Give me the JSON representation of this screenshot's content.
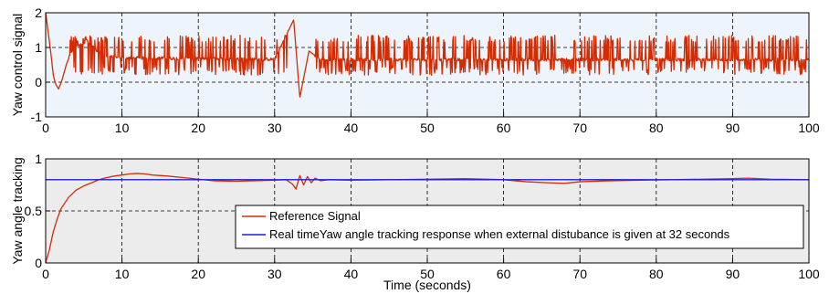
{
  "chart_data": [
    {
      "type": "line",
      "title": "",
      "xlabel": "",
      "ylabel": "Yaw control signal",
      "xlim": [
        0,
        100
      ],
      "ylim": [
        -1,
        2
      ],
      "xticks": [
        0,
        10,
        20,
        30,
        40,
        50,
        60,
        70,
        80,
        90,
        100
      ],
      "xtick_labels": [
        "0",
        "10",
        "20",
        "30",
        "40",
        "50",
        "60",
        "70",
        "80",
        "90",
        "100"
      ],
      "yticks": [
        -1,
        0,
        1,
        2
      ],
      "ytick_labels": [
        "-1",
        "0",
        "1",
        "2"
      ],
      "grid": true,
      "grid_style": "dashed",
      "background": "#eef4fb",
      "series": [
        {
          "color": "#d62b00",
          "description": "switching control signal around a 0.65 baseline",
          "points": [
            [
              0,
              2.0
            ],
            [
              0.3,
              1.5
            ],
            [
              0.7,
              0.8
            ],
            [
              1.0,
              0.2
            ],
            [
              1.3,
              -0.05
            ],
            [
              1.7,
              -0.2
            ],
            [
              2.2,
              0.1
            ],
            [
              2.7,
              0.5
            ],
            [
              3.3,
              0.85
            ],
            [
              4.0,
              1.05
            ],
            [
              5.0,
              1.15
            ],
            [
              6.0,
              1.05
            ],
            [
              7.0,
              0.85
            ],
            [
              8.0,
              0.75
            ],
            [
              10,
              0.7
            ],
            [
              20,
              0.68
            ],
            [
              30,
              0.66
            ],
            [
              32.5,
              1.8
            ],
            [
              33.3,
              -0.45
            ],
            [
              34.5,
              0.9
            ],
            [
              36,
              0.65
            ],
            [
              100,
              0.65
            ]
          ],
          "switching_band": [
            0.2,
            1.35
          ]
        }
      ]
    },
    {
      "type": "line",
      "title": "",
      "xlabel": "Time (seconds)",
      "ylabel": "Yaw angle tracking",
      "xlim": [
        0,
        100
      ],
      "ylim": [
        0,
        1
      ],
      "xticks": [
        0,
        10,
        20,
        30,
        40,
        50,
        60,
        70,
        80,
        90,
        100
      ],
      "xtick_labels": [
        "0",
        "10",
        "20",
        "30",
        "40",
        "50",
        "60",
        "70",
        "80",
        "90",
        "100"
      ],
      "yticks": [
        0,
        0.5,
        1
      ],
      "ytick_labels": [
        "0",
        "0.5",
        "1"
      ],
      "grid": true,
      "grid_style": "dashed",
      "background": "#ececec",
      "legend_position": "lower-right",
      "series": [
        {
          "name": "Reference Signal",
          "color": "#d62b00",
          "points": [
            [
              0,
              0
            ],
            [
              0.5,
              0.13
            ],
            [
              1,
              0.3
            ],
            [
              1.5,
              0.42
            ],
            [
              2,
              0.52
            ],
            [
              3,
              0.63
            ],
            [
              4,
              0.7
            ],
            [
              5,
              0.74
            ],
            [
              6,
              0.77
            ],
            [
              7,
              0.8
            ],
            [
              8,
              0.82
            ],
            [
              9,
              0.835
            ],
            [
              10,
              0.845
            ],
            [
              11,
              0.855
            ],
            [
              12,
              0.86
            ],
            [
              13,
              0.855
            ],
            [
              14,
              0.845
            ],
            [
              16,
              0.835
            ],
            [
              18,
              0.82
            ],
            [
              20,
              0.805
            ],
            [
              22,
              0.79
            ],
            [
              25,
              0.785
            ],
            [
              30,
              0.795
            ],
            [
              31.5,
              0.8
            ],
            [
              32.3,
              0.76
            ],
            [
              32.8,
              0.71
            ],
            [
              33.3,
              0.84
            ],
            [
              33.8,
              0.75
            ],
            [
              34.3,
              0.83
            ],
            [
              34.8,
              0.77
            ],
            [
              35.3,
              0.815
            ],
            [
              36,
              0.79
            ],
            [
              37,
              0.8
            ],
            [
              40,
              0.795
            ],
            [
              45,
              0.8
            ],
            [
              50,
              0.805
            ],
            [
              55,
              0.81
            ],
            [
              60,
              0.8
            ],
            [
              63,
              0.78
            ],
            [
              66,
              0.77
            ],
            [
              68,
              0.765
            ],
            [
              70,
              0.78
            ],
            [
              74,
              0.79
            ],
            [
              78,
              0.795
            ],
            [
              82,
              0.8
            ],
            [
              86,
              0.805
            ],
            [
              90,
              0.81
            ],
            [
              92,
              0.815
            ],
            [
              95,
              0.805
            ],
            [
              100,
              0.8
            ]
          ]
        },
        {
          "name": "Real timeYaw angle tracking response when external distubance is given at 32 seconds",
          "color": "#1f1fd6",
          "points": [
            [
              0,
              0.8
            ],
            [
              100,
              0.8
            ]
          ]
        }
      ]
    }
  ]
}
